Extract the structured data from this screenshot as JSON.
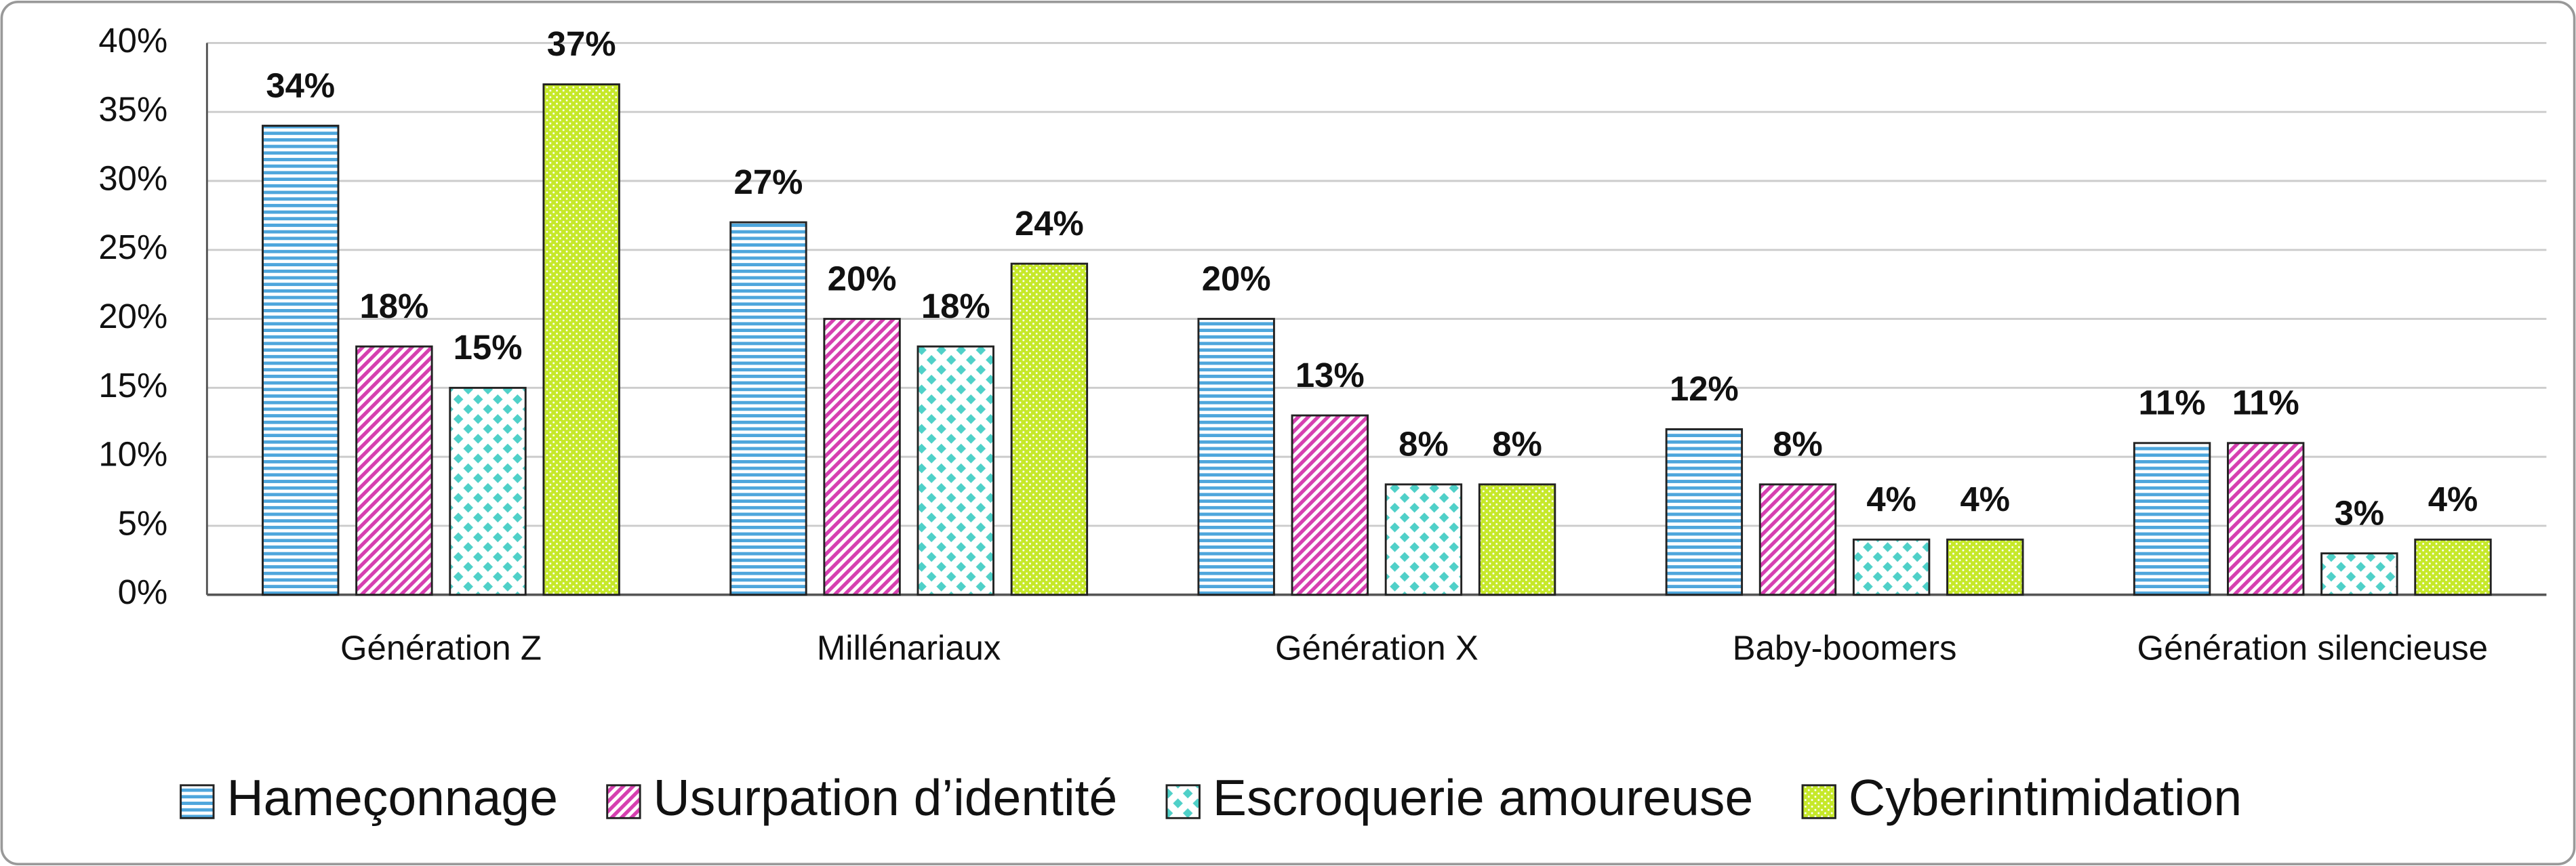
{
  "chart_data": {
    "type": "bar",
    "categories": [
      "Génération Z",
      "Millénariaux",
      "Génération X",
      "Baby-boomers",
      "Génération silencieuse"
    ],
    "series": [
      {
        "name": "Hameçonnage",
        "color": "#4ea6dc",
        "values": [
          34,
          27,
          20,
          12,
          11
        ],
        "value_labels": [
          "34%",
          "27%",
          "20%",
          "12%",
          "11%"
        ]
      },
      {
        "name": "Usurpation d’identité",
        "color": "#d63fb0",
        "values": [
          18,
          20,
          13,
          8,
          11
        ],
        "value_labels": [
          "18%",
          "20%",
          "13%",
          "8%",
          "11%"
        ]
      },
      {
        "name": "Escroquerie amoureuse",
        "color": "#4fd0c8",
        "values": [
          15,
          18,
          8,
          4,
          3
        ],
        "value_labels": [
          "15%",
          "18%",
          "8%",
          "4%",
          "3%"
        ]
      },
      {
        "name": "Cyberintimidation",
        "color": "#c6e82a",
        "values": [
          37,
          24,
          8,
          4,
          4
        ],
        "value_labels": [
          "37%",
          "24%",
          "8%",
          "4%",
          "4%"
        ]
      }
    ],
    "ylim": [
      0,
      40
    ],
    "yticks": [
      {
        "value": 0,
        "label": "0%"
      },
      {
        "value": 5,
        "label": "5%"
      },
      {
        "value": 10,
        "label": "10%"
      },
      {
        "value": 15,
        "label": "15%"
      },
      {
        "value": 20,
        "label": "20%"
      },
      {
        "value": 25,
        "label": "25%"
      },
      {
        "value": 30,
        "label": "30%"
      },
      {
        "value": 35,
        "label": "35%"
      },
      {
        "value": 40,
        "label": "40%"
      }
    ],
    "grid": true,
    "legend": "bottom"
  }
}
